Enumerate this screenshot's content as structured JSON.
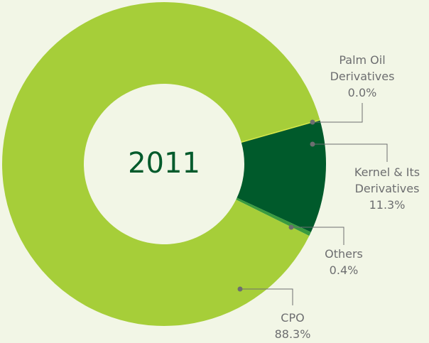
{
  "chart_data": {
    "type": "pie",
    "title": "2011",
    "categories": [
      "Palm Oil Derivatives",
      "Kernel & Its Derivatives",
      "Others",
      "CPO"
    ],
    "values": [
      0.0,
      11.3,
      0.4,
      88.3
    ],
    "value_labels": [
      "0.0%",
      "11.3%",
      "0.4%",
      "88.3%"
    ],
    "colors": [
      "#d8e84a",
      "#005a2b",
      "#3a9b3f",
      "#a6ce39"
    ]
  }
}
